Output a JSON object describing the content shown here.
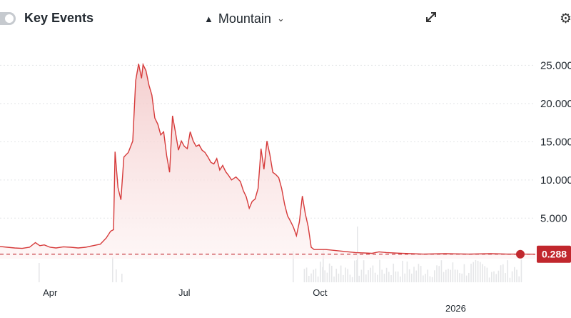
{
  "toolbar": {
    "key_events_label": "Key Events",
    "chart_type_label": "Mountain",
    "chart_type_icon": "mountain-icon",
    "chart_type_chevron": "chevron-down-icon",
    "expand_icon": "expand-icon",
    "settings_icon": "gear-icon"
  },
  "colors": {
    "line": "#d63a3a",
    "area": "#f3c9c9",
    "last_price": "#c1272d"
  },
  "chart_data": {
    "type": "area",
    "title": "",
    "xlabel": "",
    "ylabel": "",
    "ylim": [
      -0.3,
      27.0
    ],
    "xlim": [
      "2025-02-26",
      "2026-02-24"
    ],
    "x_tick_labels": [
      {
        "date": "2025-04-01",
        "label": "Apr"
      },
      {
        "date": "2025-07-01",
        "label": "Jul"
      },
      {
        "date": "2025-10-01",
        "label": "Oct"
      },
      {
        "date": "2026-01-01",
        "label": "2026"
      }
    ],
    "y_tick_labels": [
      {
        "value": 5,
        "label": "5.000"
      },
      {
        "value": 10,
        "label": "10.000"
      },
      {
        "value": 15,
        "label": "15.000"
      },
      {
        "value": 20,
        "label": "20.000"
      },
      {
        "value": 25,
        "label": "25.000"
      }
    ],
    "last_price": {
      "value": 0.2883,
      "label": "0.288"
    },
    "grid": "horizontal dotted",
    "volume_shown": true,
    "series": [
      {
        "points": [
          [
            "2025-02-26",
            1.3
          ],
          [
            "2025-03-03",
            1.2
          ],
          [
            "2025-03-08",
            1.1
          ],
          [
            "2025-03-13",
            1.05
          ],
          [
            "2025-03-18",
            1.2
          ],
          [
            "2025-03-22",
            1.8
          ],
          [
            "2025-03-25",
            1.4
          ],
          [
            "2025-03-28",
            1.5
          ],
          [
            "2025-04-01",
            1.2
          ],
          [
            "2025-04-05",
            1.1
          ],
          [
            "2025-04-10",
            1.25
          ],
          [
            "2025-04-15",
            1.2
          ],
          [
            "2025-04-20",
            1.1
          ],
          [
            "2025-04-25",
            1.2
          ],
          [
            "2025-04-30",
            1.4
          ],
          [
            "2025-05-05",
            1.6
          ],
          [
            "2025-05-09",
            2.4
          ],
          [
            "2025-05-12",
            3.3
          ],
          [
            "2025-05-14",
            3.5
          ],
          [
            "2025-05-15",
            13.7
          ],
          [
            "2025-05-17",
            9.0
          ],
          [
            "2025-05-19",
            7.4
          ],
          [
            "2025-05-21",
            13.0
          ],
          [
            "2025-05-24",
            13.6
          ],
          [
            "2025-05-27",
            15.1
          ],
          [
            "2025-05-29",
            23.0
          ],
          [
            "2025-05-31",
            25.2
          ],
          [
            "2025-06-02",
            23.3
          ],
          [
            "2025-06-03",
            25.1
          ],
          [
            "2025-06-05",
            24.3
          ],
          [
            "2025-06-07",
            22.4
          ],
          [
            "2025-06-09",
            21.1
          ],
          [
            "2025-06-11",
            18.1
          ],
          [
            "2025-06-13",
            17.3
          ],
          [
            "2025-06-15",
            15.9
          ],
          [
            "2025-06-17",
            16.3
          ],
          [
            "2025-06-19",
            13.2
          ],
          [
            "2025-06-21",
            11.0
          ],
          [
            "2025-06-23",
            18.4
          ],
          [
            "2025-06-25",
            16.2
          ],
          [
            "2025-06-27",
            13.9
          ],
          [
            "2025-06-29",
            15.1
          ],
          [
            "2025-07-01",
            14.4
          ],
          [
            "2025-07-03",
            14.1
          ],
          [
            "2025-07-05",
            16.3
          ],
          [
            "2025-07-07",
            15.1
          ],
          [
            "2025-07-09",
            14.4
          ],
          [
            "2025-07-11",
            14.6
          ],
          [
            "2025-07-13",
            13.9
          ],
          [
            "2025-07-15",
            13.6
          ],
          [
            "2025-07-17",
            13.0
          ],
          [
            "2025-07-19",
            12.3
          ],
          [
            "2025-07-21",
            12.1
          ],
          [
            "2025-07-23",
            12.8
          ],
          [
            "2025-07-25",
            11.3
          ],
          [
            "2025-07-27",
            11.9
          ],
          [
            "2025-07-29",
            11.1
          ],
          [
            "2025-07-31",
            10.6
          ],
          [
            "2025-08-02",
            10.0
          ],
          [
            "2025-08-05",
            10.4
          ],
          [
            "2025-08-08",
            9.8
          ],
          [
            "2025-08-10",
            8.6
          ],
          [
            "2025-08-12",
            7.8
          ],
          [
            "2025-08-14",
            6.3
          ],
          [
            "2025-08-16",
            7.2
          ],
          [
            "2025-08-18",
            7.5
          ],
          [
            "2025-08-20",
            8.9
          ],
          [
            "2025-08-22",
            14.1
          ],
          [
            "2025-08-24",
            11.4
          ],
          [
            "2025-08-26",
            15.1
          ],
          [
            "2025-08-28",
            13.3
          ],
          [
            "2025-08-30",
            11.0
          ],
          [
            "2025-09-01",
            10.7
          ],
          [
            "2025-09-03",
            10.3
          ],
          [
            "2025-09-05",
            8.9
          ],
          [
            "2025-09-07",
            6.8
          ],
          [
            "2025-09-09",
            5.3
          ],
          [
            "2025-09-11",
            4.6
          ],
          [
            "2025-09-13",
            3.8
          ],
          [
            "2025-09-15",
            2.7
          ],
          [
            "2025-09-17",
            4.5
          ],
          [
            "2025-09-19",
            7.9
          ],
          [
            "2025-09-21",
            5.6
          ],
          [
            "2025-09-23",
            3.9
          ],
          [
            "2025-09-25",
            1.2
          ],
          [
            "2025-09-27",
            0.9
          ],
          [
            "2025-10-05",
            0.9
          ],
          [
            "2025-10-15",
            0.7
          ],
          [
            "2025-10-25",
            0.5
          ],
          [
            "2025-11-05",
            0.4
          ],
          [
            "2025-11-10",
            0.6
          ],
          [
            "2025-11-15",
            0.5
          ],
          [
            "2025-11-25",
            0.4
          ],
          [
            "2025-12-10",
            0.3
          ],
          [
            "2025-12-25",
            0.35
          ],
          [
            "2026-01-10",
            0.3
          ],
          [
            "2026-01-25",
            0.35
          ],
          [
            "2026-02-05",
            0.3
          ],
          [
            "2026-02-15",
            0.3
          ],
          [
            "2026-02-24",
            0.2883
          ]
        ]
      }
    ]
  }
}
